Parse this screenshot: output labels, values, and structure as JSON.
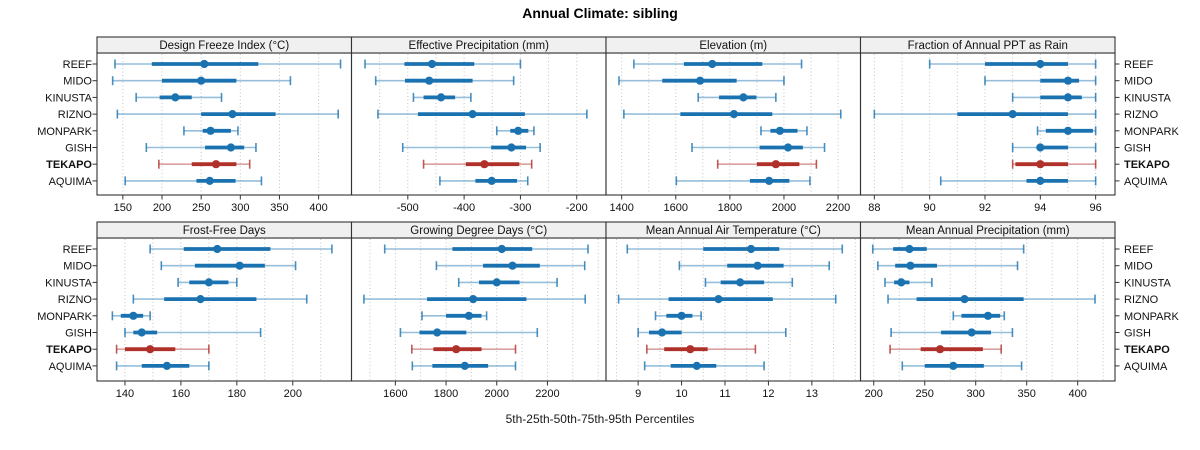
{
  "title": "Annual Climate: sibling",
  "xlabel": "5th-25th-50th-75th-95th Percentiles",
  "stations": [
    "REEF",
    "MIDO",
    "KINUSTA",
    "RIZNO",
    "MONPARK",
    "GISH",
    "TEKAPO",
    "AQUIMA"
  ],
  "highlight_station": "TEKAPO",
  "colors": {
    "normal": "#1B72B0",
    "highlight": "#B0302A",
    "strip_bg": "#F0F0F0",
    "border": "#333333",
    "grid": "#C4C4C4",
    "text": "#111111"
  },
  "chart_data": {
    "type": "table",
    "subtype": "trellis-percentile-dotplot",
    "percentiles": [
      5,
      25,
      50,
      75,
      95
    ],
    "grid": "on",
    "layout": {
      "rows": 2,
      "cols": 4
    },
    "panels": [
      {
        "title": "Design Freeze Index (°C)",
        "ticks": [
          150,
          200,
          250,
          300,
          350,
          400
        ],
        "gridlines": [
          150,
          200,
          250,
          300,
          350,
          400
        ],
        "xlim": [
          117,
          442
        ],
        "values": [
          [
            140,
            187,
            254,
            323,
            428
          ],
          [
            137,
            200,
            250,
            295,
            364
          ],
          [
            167,
            197,
            217,
            238,
            276
          ],
          [
            143,
            250,
            290,
            345,
            425
          ],
          [
            228,
            252,
            262,
            288,
            297
          ],
          [
            180,
            255,
            288,
            305,
            320
          ],
          [
            196,
            238,
            269,
            295,
            312
          ],
          [
            153,
            244,
            261,
            294,
            327
          ]
        ]
      },
      {
        "title": "Effective Precipitation (mm)",
        "ticks": [
          -500,
          -400,
          -300,
          -200
        ],
        "gridlines": [
          -550,
          -500,
          -450,
          -400,
          -350,
          -300,
          -250,
          -200
        ],
        "xlim": [
          -600,
          -148
        ],
        "values": [
          [
            -576,
            -506,
            -457,
            -382,
            -300
          ],
          [
            -557,
            -505,
            -462,
            -385,
            -312
          ],
          [
            -490,
            -472,
            -441,
            -416,
            -388
          ],
          [
            -553,
            -482,
            -385,
            -292,
            -182
          ],
          [
            -342,
            -318,
            -304,
            -286,
            -276
          ],
          [
            -509,
            -352,
            -316,
            -290,
            -265
          ],
          [
            -472,
            -397,
            -364,
            -302,
            -280
          ],
          [
            -443,
            -380,
            -351,
            -306,
            -287
          ]
        ]
      },
      {
        "title": "Elevation (m)",
        "ticks": [
          1400,
          1600,
          1800,
          2000,
          2200
        ],
        "gridlines": [
          1400,
          1500,
          1600,
          1700,
          1800,
          1900,
          2000,
          2100,
          2200
        ],
        "xlim": [
          1342,
          2283
        ],
        "values": [
          [
            1445,
            1630,
            1735,
            1920,
            2065
          ],
          [
            1390,
            1550,
            1690,
            1825,
            2000
          ],
          [
            1683,
            1760,
            1850,
            1898,
            1970
          ],
          [
            1408,
            1617,
            1815,
            1957,
            2210
          ],
          [
            1915,
            1950,
            1985,
            2050,
            2085
          ],
          [
            1660,
            1910,
            2015,
            2070,
            2150
          ],
          [
            1755,
            1900,
            1970,
            2057,
            2120
          ],
          [
            1602,
            1874,
            1945,
            2020,
            2096
          ]
        ]
      },
      {
        "title": "Fraction of Annual PPT as Rain",
        "ticks": [
          88,
          90,
          92,
          94,
          96
        ],
        "gridlines": [
          88,
          89,
          90,
          91,
          92,
          93,
          94,
          95,
          96
        ],
        "xlim": [
          87.5,
          96.7
        ],
        "values": [
          [
            90,
            92,
            94,
            95,
            96
          ],
          [
            92,
            94,
            95,
            95.4,
            96
          ],
          [
            93,
            94,
            95,
            95.5,
            96
          ],
          [
            88,
            91,
            93,
            95,
            96
          ],
          [
            93.9,
            94.2,
            95,
            95.9,
            96
          ],
          [
            93,
            93.9,
            94,
            95,
            96
          ],
          [
            93,
            93.1,
            94,
            95,
            96
          ],
          [
            90.4,
            93.5,
            94,
            95,
            96
          ]
        ]
      },
      {
        "title": "Frost-Free Days",
        "ticks": [
          140,
          160,
          180,
          200
        ],
        "gridlines": [
          140,
          150,
          160,
          170,
          180,
          190,
          200,
          210
        ],
        "xlim": [
          130,
          221
        ],
        "values": [
          [
            149,
            161,
            173,
            192,
            214
          ],
          [
            153,
            165,
            181,
            190,
            201
          ],
          [
            159,
            163,
            170,
            177,
            180
          ],
          [
            143,
            154,
            167,
            187,
            205
          ],
          [
            135.5,
            138.5,
            143,
            146.5,
            149
          ],
          [
            140,
            143,
            146,
            151.5,
            188.5
          ],
          [
            137,
            140,
            149,
            158,
            170
          ],
          [
            137,
            146,
            155,
            163,
            170
          ]
        ]
      },
      {
        "title": "Growing Degree Days (°C)",
        "ticks": [
          1600,
          1800,
          2000,
          2200
        ],
        "gridlines": [
          1500,
          1600,
          1700,
          1800,
          1900,
          2000,
          2100,
          2200,
          2300,
          2400
        ],
        "xlim": [
          1427,
          2431
        ],
        "values": [
          [
            1558,
            1825,
            2020,
            2140,
            2360
          ],
          [
            1762,
            1946,
            2062,
            2170,
            2347
          ],
          [
            1850,
            1930,
            2000,
            2090,
            2238
          ],
          [
            1476,
            1725,
            1907,
            2117,
            2349
          ],
          [
            1705,
            1800,
            1890,
            1940,
            1960
          ],
          [
            1620,
            1695,
            1765,
            1880,
            2160
          ],
          [
            1665,
            1750,
            1840,
            1940,
            2074
          ],
          [
            1667,
            1746,
            1874,
            1966,
            2074
          ]
        ]
      },
      {
        "title": "Mean Annual Air Temperature (°C)",
        "ticks": [
          9,
          10,
          11,
          12,
          13
        ],
        "gridlines": [
          8.5,
          9,
          9.5,
          10,
          10.5,
          11,
          11.5,
          12,
          12.5,
          13,
          13.5,
          14
        ],
        "xlim": [
          8.26,
          14.12
        ],
        "values": [
          [
            8.75,
            10.5,
            11.6,
            12.25,
            13.7
          ],
          [
            9.95,
            11.05,
            11.75,
            12.35,
            13.4
          ],
          [
            10.55,
            10.9,
            11.35,
            11.9,
            12.55
          ],
          [
            8.55,
            9.7,
            10.85,
            12.1,
            13.55
          ],
          [
            9.4,
            9.65,
            10.0,
            10.25,
            10.45
          ],
          [
            9.0,
            9.25,
            9.55,
            10.0,
            12.4
          ],
          [
            9.2,
            9.6,
            10.2,
            10.6,
            11.7
          ],
          [
            9.15,
            9.75,
            10.35,
            10.8,
            11.9
          ]
        ]
      },
      {
        "title": "Mean Annual Precipitation (mm)",
        "ticks": [
          200,
          250,
          300,
          350,
          400
        ],
        "gridlines": [
          200,
          225,
          250,
          275,
          300,
          325,
          350,
          375,
          400,
          425
        ],
        "xlim": [
          187,
          436.6
        ],
        "values": [
          [
            199,
            219,
            235,
            252,
            347
          ],
          [
            204,
            221,
            236,
            262,
            341
          ],
          [
            211,
            220,
            227,
            235,
            257
          ],
          [
            214,
            242,
            289,
            347,
            417
          ],
          [
            278,
            286,
            312,
            324,
            328
          ],
          [
            217,
            266,
            296,
            315,
            336
          ],
          [
            216,
            246,
            265,
            307,
            325
          ],
          [
            228,
            250,
            278,
            308,
            345
          ]
        ]
      }
    ]
  }
}
